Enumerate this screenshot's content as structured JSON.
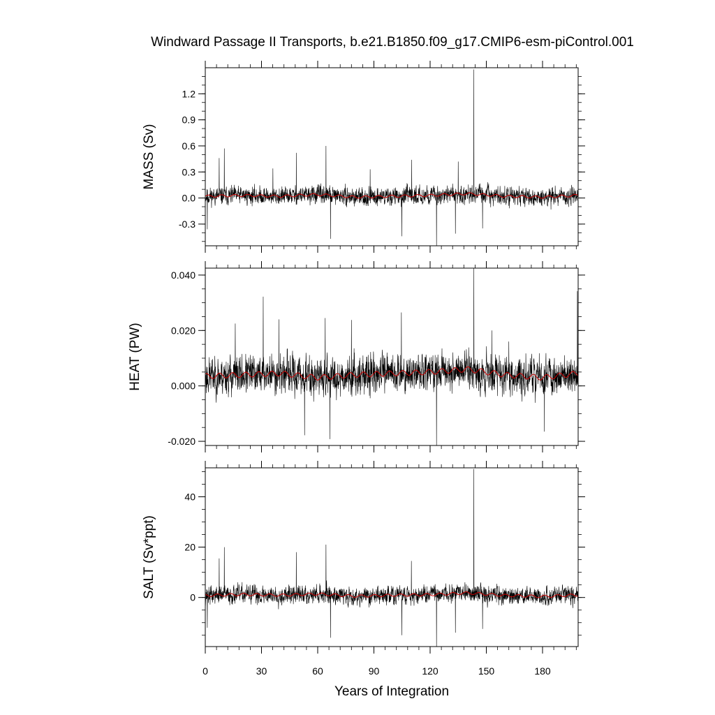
{
  "title": "Windward Passage II Transports, b.e21.B1850.f09_g17.CMIP6-esm-piControl.001",
  "xlabel": "Years of Integration",
  "x_ticks": [
    0,
    30,
    60,
    90,
    120,
    150,
    180
  ],
  "colors": {
    "raw": "#000000",
    "smoothed": "#cc0000",
    "frame": "#000000"
  },
  "chart_data": [
    {
      "type": "line",
      "panel": "mass",
      "ylabel": "MASS (Sv)",
      "xlim": [
        0,
        199
      ],
      "ylim": [
        -0.55,
        1.5
      ],
      "y_ticks": [
        -0.3,
        0.0,
        0.3,
        0.6,
        0.9,
        1.2
      ],
      "y_tick_labels": [
        "-0.3",
        "0.0",
        "0.3",
        "0.6",
        "0.9",
        "1.2"
      ],
      "y_minor_step": 0.1,
      "noise": {
        "mean": 0.02,
        "amplitude": 0.08,
        "seed": 11
      },
      "spikes": [
        {
          "x": 143.3,
          "y": 1.48
        },
        {
          "x": 10.2,
          "y": 0.57
        },
        {
          "x": 64.4,
          "y": 0.6
        },
        {
          "x": 48.6,
          "y": 0.52
        },
        {
          "x": 7.4,
          "y": 0.46
        },
        {
          "x": 36.1,
          "y": 0.34
        },
        {
          "x": 135.0,
          "y": 0.42
        },
        {
          "x": 110.2,
          "y": 0.44
        },
        {
          "x": 123.4,
          "y": -0.56
        },
        {
          "x": 66.8,
          "y": -0.47
        },
        {
          "x": 104.9,
          "y": -0.44
        },
        {
          "x": 1.1,
          "y": -0.36
        },
        {
          "x": 133.5,
          "y": -0.41
        },
        {
          "x": 148.0,
          "y": -0.35
        },
        {
          "x": 88.0,
          "y": 0.33
        }
      ],
      "smoothed": {
        "x": [
          0,
          20,
          40,
          60,
          80,
          100,
          120,
          140,
          160,
          180,
          199
        ],
        "y": [
          0.02,
          0.03,
          0.02,
          0.04,
          0.01,
          0.02,
          0.03,
          0.05,
          0.02,
          0.01,
          0.03
        ]
      },
      "series": [
        {
          "values_ref": "raw annual-mean transport"
        }
      ]
    },
    {
      "type": "line",
      "panel": "heat",
      "ylabel": "HEAT (PW)",
      "xlim": [
        0,
        199
      ],
      "ylim": [
        -0.0215,
        0.0425
      ],
      "y_ticks": [
        -0.02,
        0.0,
        0.02,
        0.04
      ],
      "y_tick_labels": [
        "-0.020",
        "0.000",
        "0.020",
        "0.040"
      ],
      "y_minor_step": 0.005,
      "noise": {
        "mean": 0.0035,
        "amplitude": 0.0055,
        "seed": 23
      },
      "spikes": [
        {
          "x": 143.3,
          "y": 0.0425
        },
        {
          "x": 30.9,
          "y": 0.0322
        },
        {
          "x": 198.6,
          "y": 0.0342
        },
        {
          "x": 104.7,
          "y": 0.0265
        },
        {
          "x": 64.0,
          "y": 0.0245
        },
        {
          "x": 78.0,
          "y": 0.0238
        },
        {
          "x": 39.3,
          "y": 0.024
        },
        {
          "x": 16.0,
          "y": 0.0225
        },
        {
          "x": 123.4,
          "y": -0.0215
        },
        {
          "x": 53.0,
          "y": -0.0178
        },
        {
          "x": 66.5,
          "y": -0.0192
        },
        {
          "x": 181.0,
          "y": -0.0165
        },
        {
          "x": 153.0,
          "y": 0.02
        },
        {
          "x": 162.0,
          "y": 0.016
        }
      ],
      "smoothed": {
        "x": [
          0,
          20,
          40,
          60,
          80,
          100,
          120,
          140,
          160,
          180,
          199
        ],
        "y": [
          0.0035,
          0.004,
          0.0045,
          0.003,
          0.004,
          0.0045,
          0.005,
          0.006,
          0.004,
          0.003,
          0.0045
        ]
      }
    },
    {
      "type": "line",
      "panel": "salt",
      "ylabel": "SALT (Sv*ppt)",
      "xlim": [
        0,
        199
      ],
      "ylim": [
        -19.5,
        51.5
      ],
      "y_ticks": [
        0,
        20,
        40
      ],
      "y_tick_labels": [
        "0",
        "20",
        "40"
      ],
      "y_minor_step": 5,
      "noise": {
        "mean": 0.8,
        "amplitude": 2.9,
        "seed": 37
      },
      "spikes": [
        {
          "x": 143.3,
          "y": 51.0
        },
        {
          "x": 10.2,
          "y": 20.0
        },
        {
          "x": 64.4,
          "y": 21.0
        },
        {
          "x": 48.6,
          "y": 18.0
        },
        {
          "x": 7.4,
          "y": 15.5
        },
        {
          "x": 110.0,
          "y": 14.5
        },
        {
          "x": 123.4,
          "y": -19.5
        },
        {
          "x": 66.8,
          "y": -16.0
        },
        {
          "x": 104.9,
          "y": -15.0
        },
        {
          "x": 1.1,
          "y": -12.0
        },
        {
          "x": 133.5,
          "y": -14.0
        },
        {
          "x": 148.0,
          "y": -12.5
        }
      ],
      "smoothed": {
        "x": [
          0,
          20,
          40,
          60,
          80,
          100,
          120,
          140,
          160,
          180,
          199
        ],
        "y": [
          0.8,
          1.2,
          0.9,
          1.4,
          0.5,
          0.9,
          1.1,
          1.8,
          0.8,
          0.4,
          1.0
        ]
      }
    }
  ]
}
